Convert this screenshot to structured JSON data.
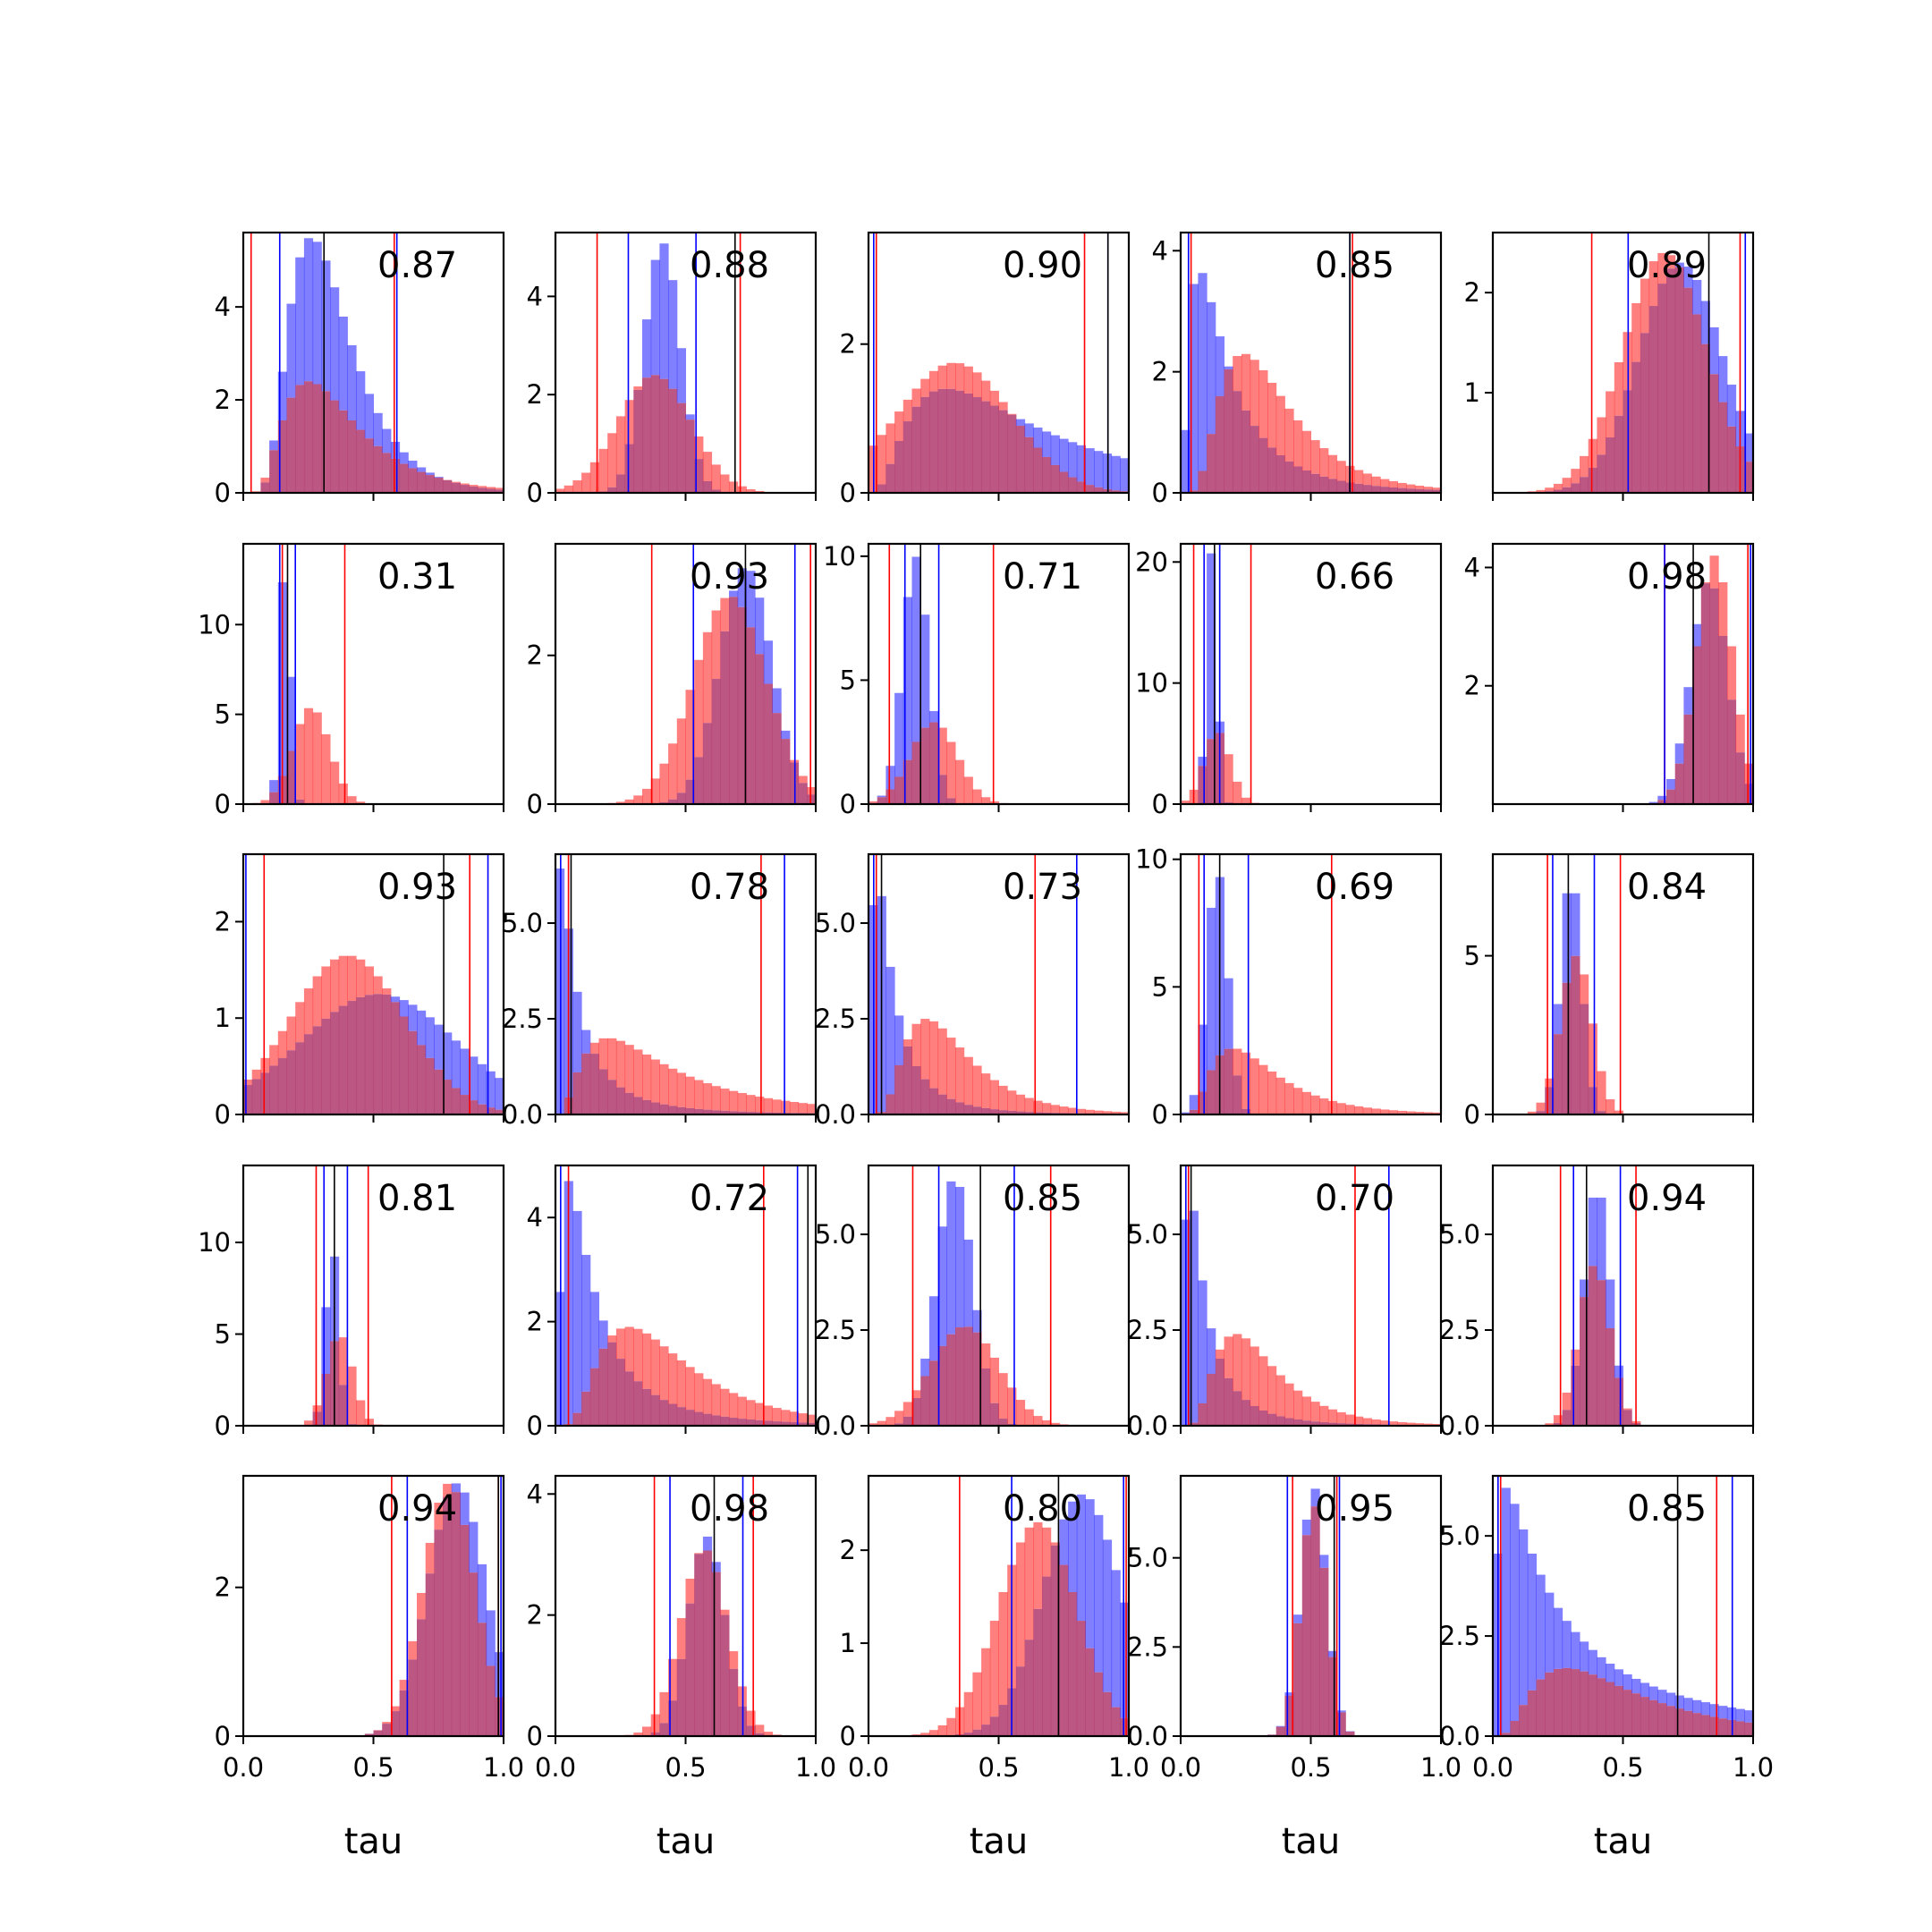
{
  "figure": {
    "colors": {
      "series_a": "#0000ff",
      "series_b": "#ff0000",
      "overlap_fill": "#b03a6e",
      "median_line": "#000000"
    },
    "xlabel": "tau",
    "xlim": [
      0,
      1
    ],
    "xticks": [
      "0.0",
      "0.5",
      "1.0"
    ]
  },
  "chart_data": [
    {
      "type": "bar",
      "panel": "r1c1",
      "annotation": "0.87",
      "ylim": [
        0,
        5.6
      ],
      "yticks": [
        {
          "v": 0,
          "label": "0"
        },
        {
          "v": 2,
          "label": "2"
        },
        {
          "v": 4,
          "label": "4"
        }
      ],
      "vlines_blue": [
        0.14,
        0.59
      ],
      "vlines_red": [
        0.03,
        0.58
      ],
      "vline_black": 0.31,
      "dist_a": {
        "shape": "lognormal",
        "peak": 0.26,
        "spread": 0.45,
        "height": 5.5
      },
      "dist_b": {
        "shape": "lognormal",
        "peak": 0.25,
        "spread": 0.55,
        "height": 2.4
      }
    },
    {
      "type": "bar",
      "panel": "r1c2",
      "annotation": "0.88",
      "ylim": [
        0,
        5.3
      ],
      "yticks": [
        {
          "v": 0,
          "label": "0"
        },
        {
          "v": 2,
          "label": "2"
        },
        {
          "v": 4,
          "label": "4"
        }
      ],
      "vlines_blue": [
        0.28,
        0.54
      ],
      "vlines_red": [
        0.16,
        0.71
      ],
      "vline_black": 0.69,
      "dist_a": {
        "shape": "normal",
        "peak": 0.41,
        "spread": 0.07,
        "height": 5.1
      },
      "dist_b": {
        "shape": "normal",
        "peak": 0.38,
        "spread": 0.14,
        "height": 2.4
      }
    },
    {
      "type": "bar",
      "panel": "r1c3",
      "annotation": "0.90",
      "ylim": [
        0,
        3.5
      ],
      "yticks": [
        {
          "v": 0,
          "label": "0"
        },
        {
          "v": 2,
          "label": "2"
        }
      ],
      "vlines_blue": [
        0.02,
        0.92
      ],
      "vlines_red": [
        0.03,
        0.83
      ],
      "vline_black": 0.92,
      "dist_a": {
        "shape": "lognormal",
        "peak": 0.3,
        "spread": 0.8,
        "height": 1.4
      },
      "dist_b": {
        "shape": "normal",
        "peak": 0.33,
        "spread": 0.22,
        "height": 1.75
      }
    },
    {
      "type": "bar",
      "panel": "r1c4",
      "annotation": "0.85",
      "ylim": [
        0,
        4.3
      ],
      "yticks": [
        {
          "v": 0,
          "label": "0"
        },
        {
          "v": 2,
          "label": "2"
        },
        {
          "v": 4,
          "label": "4"
        }
      ],
      "vlines_blue": [
        0.03,
        0.65
      ],
      "vlines_red": [
        0.04,
        0.66
      ],
      "vline_black": 0.65,
      "dist_a": {
        "shape": "lognormal",
        "peak": 0.07,
        "spread": 0.9,
        "height": 3.7
      },
      "dist_b": {
        "shape": "lognormal",
        "peak": 0.24,
        "spread": 0.55,
        "height": 2.3
      }
    },
    {
      "type": "bar",
      "panel": "r1c5",
      "annotation": "0.89",
      "ylim": [
        0,
        2.6
      ],
      "yticks": [
        {
          "v": 1,
          "label": "1"
        },
        {
          "v": 2,
          "label": "2"
        }
      ],
      "vlines_blue": [
        0.52,
        0.97
      ],
      "vlines_red": [
        0.38,
        0.95
      ],
      "vline_black": 0.83,
      "dist_a": {
        "shape": "normal",
        "peak": 0.72,
        "spread": 0.16,
        "height": 2.3
      },
      "dist_b": {
        "shape": "normal",
        "peak": 0.66,
        "spread": 0.16,
        "height": 2.4
      }
    },
    {
      "type": "bar",
      "panel": "r2c1",
      "annotation": "0.31",
      "ylim": [
        0,
        14.5
      ],
      "yticks": [
        {
          "v": 0,
          "label": "0"
        },
        {
          "v": 5,
          "label": "5"
        },
        {
          "v": 10,
          "label": "10"
        }
      ],
      "vlines_blue": [
        0.14,
        0.2
      ],
      "vlines_red": [
        0.15,
        0.39
      ],
      "vline_black": 0.17,
      "dist_a": {
        "shape": "normal",
        "peak": 0.16,
        "spread": 0.02,
        "height": 14
      },
      "dist_b": {
        "shape": "normal",
        "peak": 0.26,
        "spread": 0.07,
        "height": 5.4
      }
    },
    {
      "type": "bar",
      "panel": "r2c2",
      "annotation": "0.93",
      "ylim": [
        0,
        3.5
      ],
      "yticks": [
        {
          "v": 0,
          "label": "0"
        },
        {
          "v": 2,
          "label": "2"
        }
      ],
      "vlines_blue": [
        0.53,
        0.92
      ],
      "vlines_red": [
        0.37,
        0.98
      ],
      "vline_black": 0.73,
      "dist_a": {
        "shape": "normal",
        "peak": 0.73,
        "spread": 0.1,
        "height": 3.2
      },
      "dist_b": {
        "shape": "normal",
        "peak": 0.67,
        "spread": 0.14,
        "height": 2.8
      }
    },
    {
      "type": "bar",
      "panel": "r2c3",
      "annotation": "0.71",
      "ylim": [
        0,
        10.5
      ],
      "yticks": [
        {
          "v": 0,
          "label": "0"
        },
        {
          "v": 5,
          "label": "5"
        },
        {
          "v": 10,
          "label": "10"
        }
      ],
      "vlines_blue": [
        0.14,
        0.27
      ],
      "vlines_red": [
        0.08,
        0.48
      ],
      "vline_black": 0.2,
      "dist_a": {
        "shape": "normal",
        "peak": 0.18,
        "spread": 0.05,
        "height": 10
      },
      "dist_b": {
        "shape": "normal",
        "peak": 0.25,
        "spread": 0.09,
        "height": 3.3
      }
    },
    {
      "type": "bar",
      "panel": "r2c4",
      "annotation": "0.66",
      "ylim": [
        0,
        21.5
      ],
      "yticks": [
        {
          "v": 0,
          "label": "0"
        },
        {
          "v": 10,
          "label": "10"
        },
        {
          "v": 20,
          "label": "20"
        }
      ],
      "vlines_blue": [
        0.09,
        0.15
      ],
      "vlines_red": [
        0.05,
        0.27
      ],
      "vline_black": 0.13,
      "dist_a": {
        "shape": "normal",
        "peak": 0.12,
        "spread": 0.02,
        "height": 21
      },
      "dist_b": {
        "shape": "normal",
        "peak": 0.14,
        "spread": 0.05,
        "height": 6
      }
    },
    {
      "type": "bar",
      "panel": "r2c5",
      "annotation": "0.98",
      "ylim": [
        0,
        4.4
      ],
      "yticks": [
        {
          "v": 2,
          "label": "2"
        },
        {
          "v": 4,
          "label": "4"
        }
      ],
      "vlines_blue": [
        0.66,
        0.99
      ],
      "vlines_red": [
        0.66,
        0.98
      ],
      "vline_black": 0.77,
      "dist_a": {
        "shape": "normal",
        "peak": 0.83,
        "spread": 0.07,
        "height": 3.8
      },
      "dist_b": {
        "shape": "normal",
        "peak": 0.85,
        "spread": 0.07,
        "height": 4.2
      }
    },
    {
      "type": "bar",
      "panel": "r3c1",
      "annotation": "0.93",
      "ylim": [
        0,
        2.7
      ],
      "yticks": [
        {
          "v": 0,
          "label": "0"
        },
        {
          "v": 1,
          "label": "1"
        },
        {
          "v": 2,
          "label": "2"
        }
      ],
      "vlines_blue": [
        0.01,
        0.94
      ],
      "vlines_red": [
        0.08,
        0.87
      ],
      "vline_black": 0.77,
      "dist_a": {
        "shape": "normal",
        "peak": 0.52,
        "spread": 0.3,
        "height": 1.25
      },
      "dist_b": {
        "shape": "normal",
        "peak": 0.4,
        "spread": 0.22,
        "height": 1.65
      }
    },
    {
      "type": "bar",
      "panel": "r3c2",
      "annotation": "0.78",
      "ylim": [
        0,
        6.8
      ],
      "yticks": [
        {
          "v": 0,
          "label": "0.0"
        },
        {
          "v": 2.5,
          "label": "2.5"
        },
        {
          "v": 5,
          "label": "5.0"
        }
      ],
      "vlines_blue": [
        0.02,
        0.88
      ],
      "vlines_red": [
        0.05,
        0.79
      ],
      "vline_black": 0.06,
      "dist_a": {
        "shape": "lognormal",
        "peak": 0.02,
        "spread": 1.2,
        "height": 6.5
      },
      "dist_b": {
        "shape": "lognormal",
        "peak": 0.2,
        "spread": 0.8,
        "height": 2.0
      }
    },
    {
      "type": "bar",
      "panel": "r3c3",
      "annotation": "0.73",
      "ylim": [
        0,
        6.8
      ],
      "yticks": [
        {
          "v": 0,
          "label": "0.0"
        },
        {
          "v": 2.5,
          "label": "2.5"
        },
        {
          "v": 5,
          "label": "5.0"
        }
      ],
      "vlines_blue": [
        0.02,
        0.8
      ],
      "vlines_red": [
        0.03,
        0.64
      ],
      "vline_black": 0.05,
      "dist_a": {
        "shape": "lognormal",
        "peak": 0.03,
        "spread": 1.0,
        "height": 6.5
      },
      "dist_b": {
        "shape": "lognormal",
        "peak": 0.22,
        "spread": 0.55,
        "height": 2.5
      }
    },
    {
      "type": "bar",
      "panel": "r3c4",
      "annotation": "0.69",
      "ylim": [
        0,
        10.2
      ],
      "yticks": [
        {
          "v": 0,
          "label": "0"
        },
        {
          "v": 5,
          "label": "5"
        },
        {
          "v": 10,
          "label": "10"
        }
      ],
      "vlines_blue": [
        0.09,
        0.26
      ],
      "vlines_red": [
        0.07,
        0.58
      ],
      "vline_black": 0.15,
      "dist_a": {
        "shape": "normal",
        "peak": 0.14,
        "spread": 0.04,
        "height": 9.6
      },
      "dist_b": {
        "shape": "lognormal",
        "peak": 0.2,
        "spread": 0.6,
        "height": 2.6
      }
    },
    {
      "type": "bar",
      "panel": "r3c5",
      "annotation": "0.84",
      "ylim": [
        0,
        8.2
      ],
      "yticks": [
        {
          "v": 0,
          "label": "0"
        },
        {
          "v": 5,
          "label": "5"
        }
      ],
      "vlines_blue": [
        0.23,
        0.39
      ],
      "vlines_red": [
        0.21,
        0.49
      ],
      "vline_black": 0.29,
      "dist_a": {
        "shape": "normal",
        "peak": 0.3,
        "spread": 0.04,
        "height": 7.6
      },
      "dist_b": {
        "shape": "normal",
        "peak": 0.32,
        "spread": 0.06,
        "height": 5.0
      }
    },
    {
      "type": "bar",
      "panel": "r4c1",
      "annotation": "0.81",
      "ylim": [
        0,
        14.2
      ],
      "yticks": [
        {
          "v": 0,
          "label": "0"
        },
        {
          "v": 5,
          "label": "5"
        },
        {
          "v": 10,
          "label": "10"
        }
      ],
      "vlines_blue": [
        0.31,
        0.4
      ],
      "vlines_red": [
        0.28,
        0.48
      ],
      "vline_black": 0.35,
      "dist_a": {
        "shape": "normal",
        "peak": 0.34,
        "spread": 0.025,
        "height": 10
      },
      "dist_b": {
        "shape": "normal",
        "peak": 0.37,
        "spread": 0.05,
        "height": 5.0
      }
    },
    {
      "type": "bar",
      "panel": "r4c2",
      "annotation": "0.72",
      "ylim": [
        0,
        5.0
      ],
      "yticks": [
        {
          "v": 0,
          "label": "0"
        },
        {
          "v": 2,
          "label": "2"
        },
        {
          "v": 4,
          "label": "4"
        }
      ],
      "vlines_blue": [
        0.02,
        0.93
      ],
      "vlines_red": [
        0.05,
        0.8
      ],
      "vline_black": 0.97,
      "dist_a": {
        "shape": "lognormal",
        "peak": 0.05,
        "spread": 1.0,
        "height": 4.7
      },
      "dist_b": {
        "shape": "lognormal",
        "peak": 0.28,
        "spread": 0.6,
        "height": 1.9
      }
    },
    {
      "type": "bar",
      "panel": "r4c3",
      "annotation": "0.85",
      "ylim": [
        0,
        6.8
      ],
      "yticks": [
        {
          "v": 0,
          "label": "0.0"
        },
        {
          "v": 2.5,
          "label": "2.5"
        },
        {
          "v": 5,
          "label": "5.0"
        }
      ],
      "vlines_blue": [
        0.27,
        0.56
      ],
      "vlines_red": [
        0.17,
        0.7
      ],
      "vline_black": 0.43,
      "dist_a": {
        "shape": "normal",
        "peak": 0.33,
        "spread": 0.07,
        "height": 6.5
      },
      "dist_b": {
        "shape": "normal",
        "peak": 0.37,
        "spread": 0.13,
        "height": 2.6
      }
    },
    {
      "type": "bar",
      "panel": "r4c4",
      "annotation": "0.70",
      "ylim": [
        0,
        6.8
      ],
      "yticks": [
        {
          "v": 0,
          "label": "0.0"
        },
        {
          "v": 2.5,
          "label": "2.5"
        },
        {
          "v": 5,
          "label": "5.0"
        }
      ],
      "vlines_blue": [
        0.02,
        0.8
      ],
      "vlines_red": [
        0.03,
        0.67
      ],
      "vline_black": 0.04,
      "dist_a": {
        "shape": "lognormal",
        "peak": 0.03,
        "spread": 1.0,
        "height": 6.4
      },
      "dist_b": {
        "shape": "lognormal",
        "peak": 0.21,
        "spread": 0.55,
        "height": 2.4
      }
    },
    {
      "type": "bar",
      "panel": "r4c5",
      "annotation": "0.94",
      "ylim": [
        0,
        6.8
      ],
      "yticks": [
        {
          "v": 0,
          "label": "0.0"
        },
        {
          "v": 2.5,
          "label": "2.5"
        },
        {
          "v": 5,
          "label": "5.0"
        }
      ],
      "vlines_blue": [
        0.31,
        0.49
      ],
      "vlines_red": [
        0.26,
        0.55
      ],
      "vline_black": 0.36,
      "dist_a": {
        "shape": "normal",
        "peak": 0.4,
        "spread": 0.05,
        "height": 6.3
      },
      "dist_b": {
        "shape": "normal",
        "peak": 0.39,
        "spread": 0.06,
        "height": 4.2
      }
    },
    {
      "type": "bar",
      "panel": "r5c1",
      "annotation": "0.94",
      "ylim": [
        0,
        3.5
      ],
      "yticks": [
        {
          "v": 0,
          "label": "0"
        },
        {
          "v": 2,
          "label": "2"
        }
      ],
      "vlines_blue": [
        0.63,
        0.99
      ],
      "vlines_red": [
        0.57,
        0.98
      ],
      "vline_black": 0.98,
      "dist_a": {
        "shape": "normal",
        "peak": 0.82,
        "spread": 0.11,
        "height": 3.4
      },
      "dist_b": {
        "shape": "normal",
        "peak": 0.79,
        "spread": 0.1,
        "height": 3.4
      }
    },
    {
      "type": "bar",
      "panel": "r5c2",
      "annotation": "0.98",
      "ylim": [
        0,
        4.3
      ],
      "yticks": [
        {
          "v": 0,
          "label": "0"
        },
        {
          "v": 2,
          "label": "2"
        },
        {
          "v": 4,
          "label": "4"
        }
      ],
      "vlines_blue": [
        0.44,
        0.72
      ],
      "vlines_red": [
        0.38,
        0.76
      ],
      "vline_black": 0.61,
      "dist_a": {
        "shape": "normal",
        "peak": 0.58,
        "spread": 0.07,
        "height": 3.3
      },
      "dist_b": {
        "shape": "normal",
        "peak": 0.57,
        "spread": 0.09,
        "height": 3.1
      }
    },
    {
      "type": "bar",
      "panel": "r5c3",
      "annotation": "0.80",
      "ylim": [
        0,
        2.8
      ],
      "yticks": [
        {
          "v": 0,
          "label": "0"
        },
        {
          "v": 1,
          "label": "1"
        },
        {
          "v": 2,
          "label": "2"
        }
      ],
      "vlines_blue": [
        0.55,
        0.98
      ],
      "vlines_red": [
        0.35,
        0.99
      ],
      "vline_black": 0.73,
      "dist_a": {
        "shape": "normal",
        "peak": 0.82,
        "spread": 0.15,
        "height": 2.6
      },
      "dist_b": {
        "shape": "normal",
        "peak": 0.65,
        "spread": 0.15,
        "height": 2.3
      }
    },
    {
      "type": "bar",
      "panel": "r5c4",
      "annotation": "0.95",
      "ylim": [
        0,
        7.3
      ],
      "yticks": [
        {
          "v": 0,
          "label": "0.0"
        },
        {
          "v": 2.5,
          "label": "2.5"
        },
        {
          "v": 5,
          "label": "5.0"
        }
      ],
      "vlines_blue": [
        0.41,
        0.61
      ],
      "vlines_red": [
        0.43,
        0.6
      ],
      "vline_black": 0.59,
      "dist_a": {
        "shape": "normal",
        "peak": 0.51,
        "spread": 0.05,
        "height": 7.0
      },
      "dist_b": {
        "shape": "normal",
        "peak": 0.51,
        "spread": 0.05,
        "height": 6.5
      }
    },
    {
      "type": "bar",
      "panel": "r5c5",
      "annotation": "0.85",
      "ylim": [
        0,
        6.5
      ],
      "yticks": [
        {
          "v": 0,
          "label": "0.0"
        },
        {
          "v": 2.5,
          "label": "2.5"
        },
        {
          "v": 5,
          "label": "5.0"
        }
      ],
      "vlines_blue": [
        0.02,
        0.92
      ],
      "vlines_red": [
        0.03,
        0.86
      ],
      "vline_black": 0.71,
      "dist_a": {
        "shape": "lognormal",
        "peak": 0.05,
        "spread": 1.4,
        "height": 6.2
      },
      "dist_b": {
        "shape": "lognormal",
        "peak": 0.28,
        "spread": 0.7,
        "height": 1.7
      }
    }
  ]
}
